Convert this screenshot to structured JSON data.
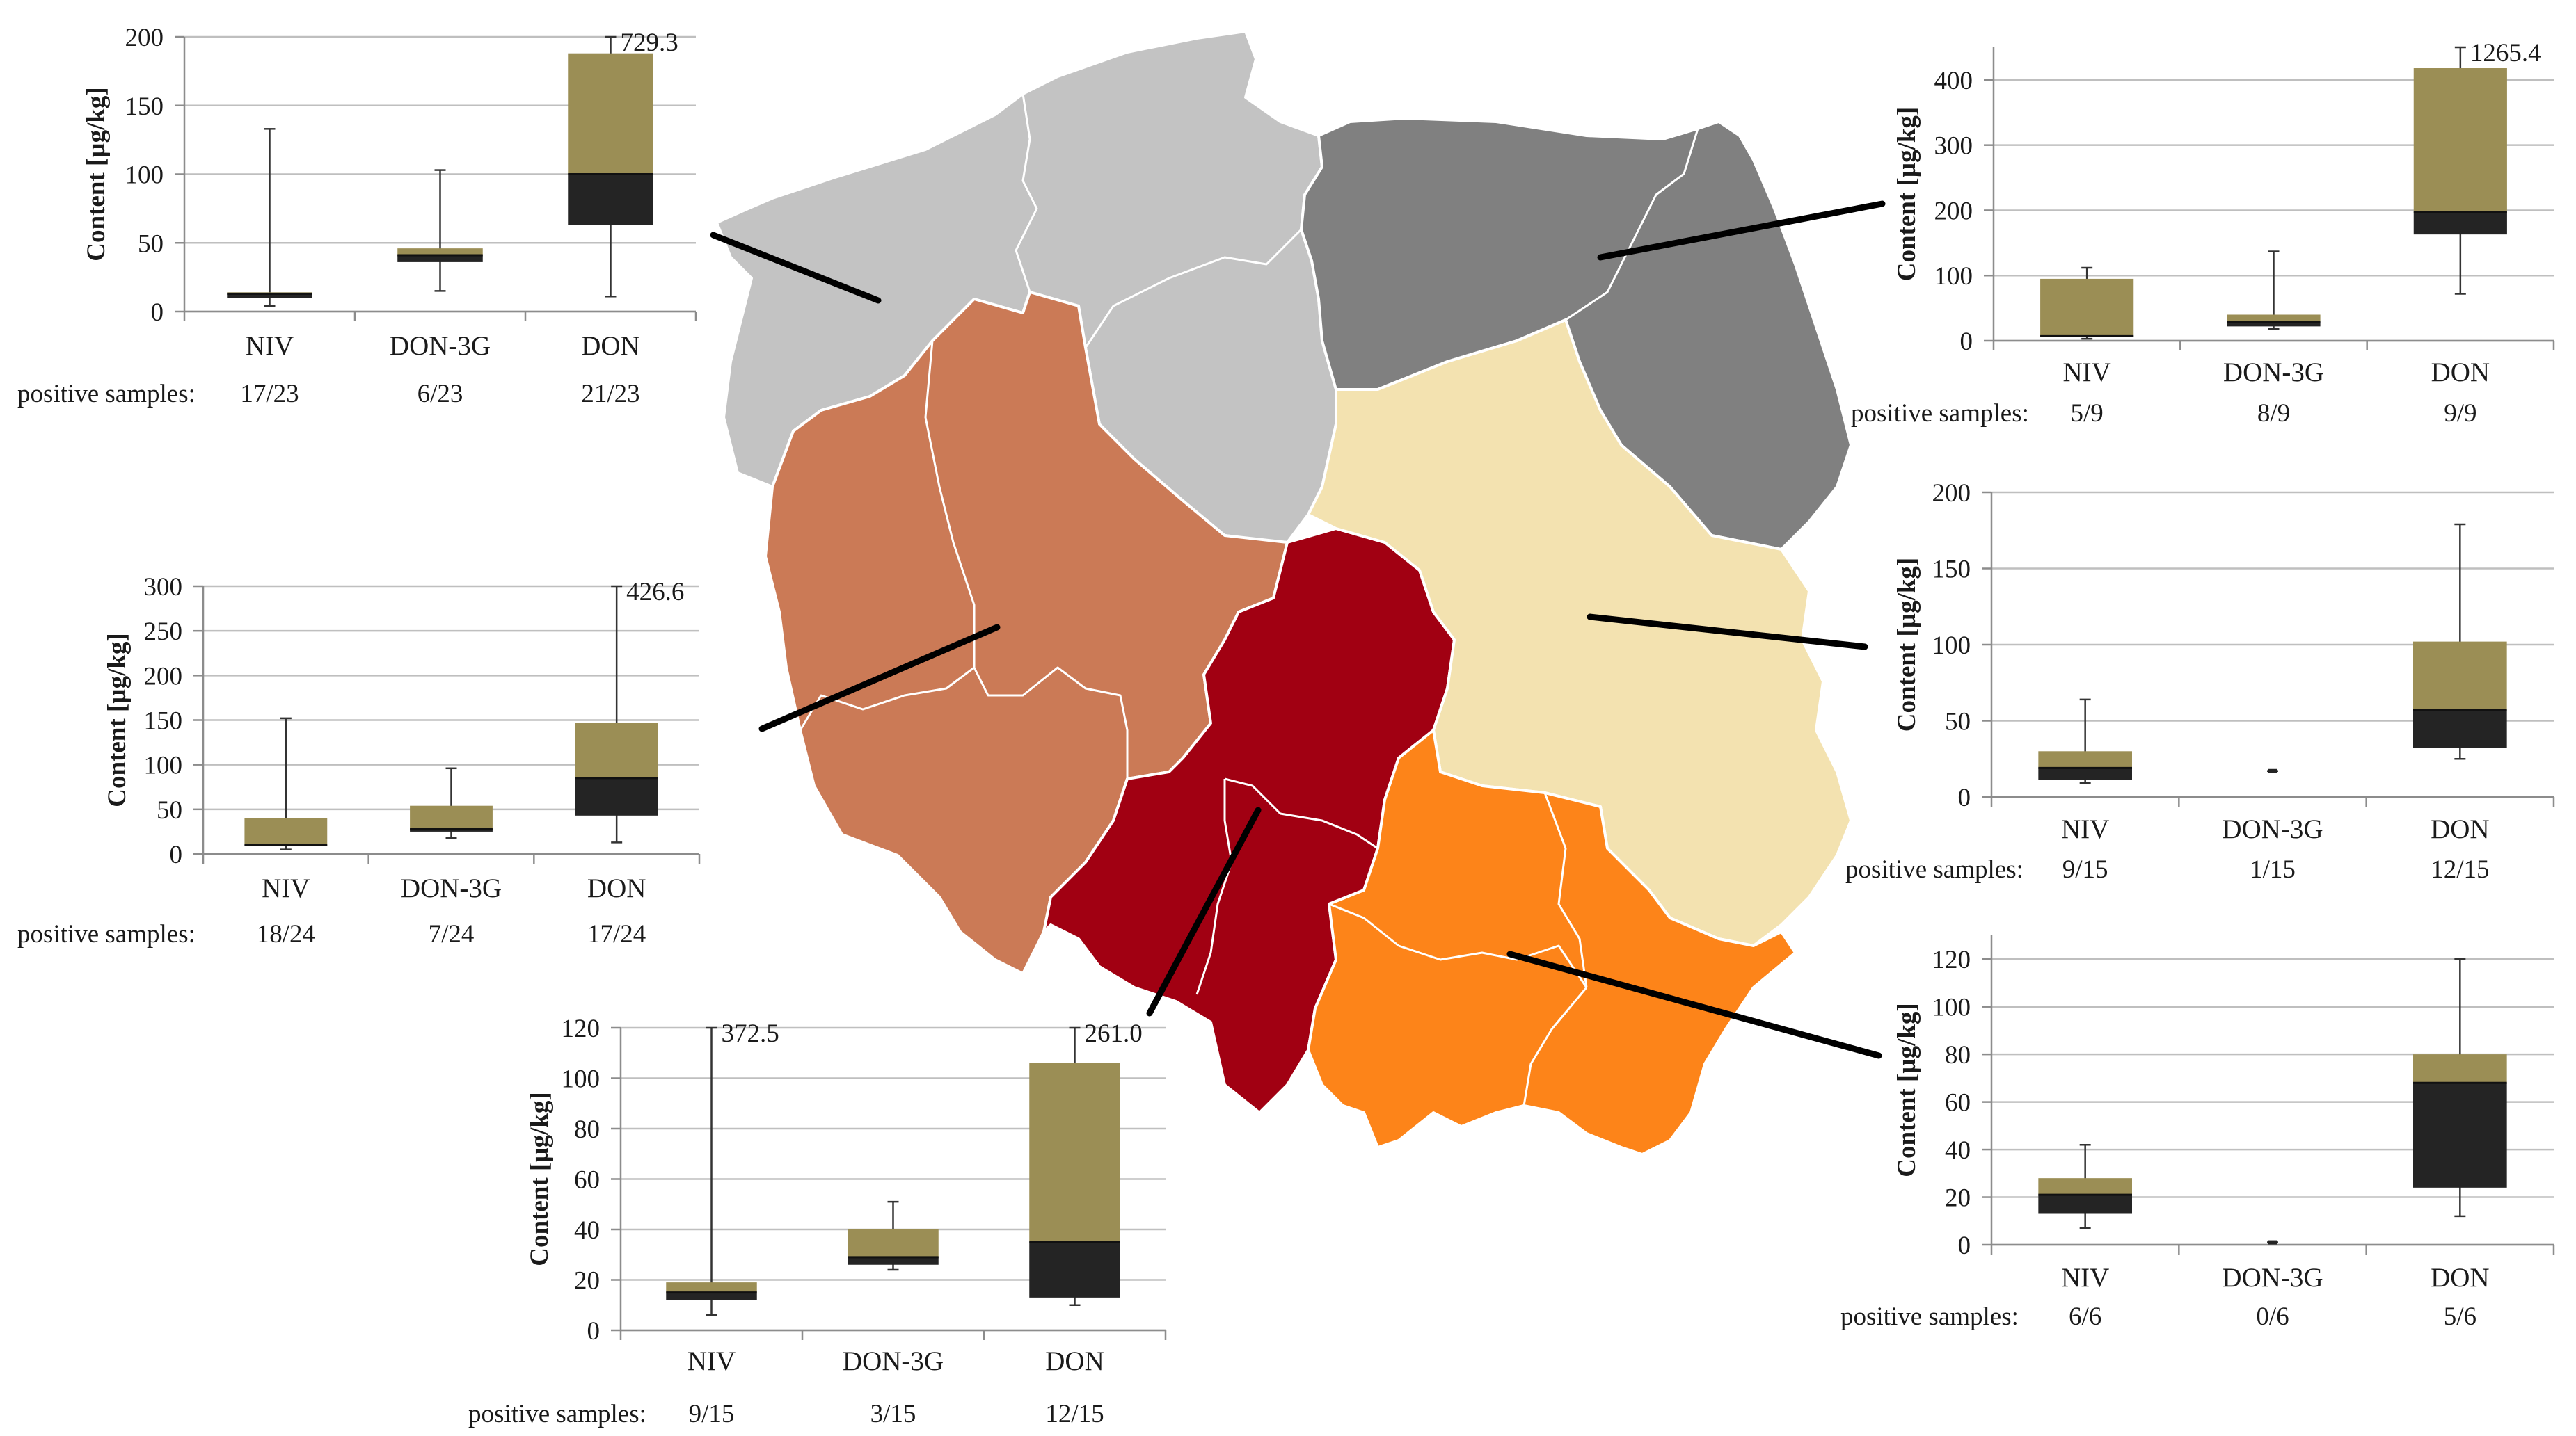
{
  "colors": {
    "upper_box": "#9B8E55",
    "lower_box": "#242424",
    "grid": "#BFBFBF",
    "axis": "#8C8C8C",
    "region_northwest": "#C3C3C3",
    "region_northeast": "#808080",
    "region_west": "#CB7A56",
    "region_central_south": "#A10012",
    "region_east": "#F3E2B0",
    "region_southeast": "#FD8419"
  },
  "chart_data": [
    {
      "id": "northwest",
      "type": "box",
      "ylabel": "Content [µg/kg]",
      "ylim": [
        0,
        200
      ],
      "yticks": [
        0,
        50,
        100,
        150,
        200
      ],
      "categories": [
        "NIV",
        "DON-3G",
        "DON"
      ],
      "boxes": [
        {
          "min": 4,
          "q1": 10,
          "median": 13,
          "q3": 14,
          "max": 133
        },
        {
          "min": 15,
          "q1": 36,
          "median": 41,
          "q3": 46,
          "max": 103
        },
        {
          "min": 11,
          "q1": 63,
          "median": 100,
          "q3": 188,
          "max": 200
        }
      ],
      "outlier_labels": [
        "",
        "",
        "729.3"
      ],
      "positive_samples_label": "positive samples:",
      "positive_samples": [
        "17/23",
        "6/23",
        "21/23"
      ]
    },
    {
      "id": "northeast",
      "type": "box",
      "ylabel": "Content [µg/kg]",
      "ylim": [
        0,
        450
      ],
      "yticks": [
        0,
        100,
        200,
        300,
        400
      ],
      "categories": [
        "NIV",
        "DON-3G",
        "DON"
      ],
      "boxes": [
        {
          "min": 3,
          "q1": 6,
          "median": 7,
          "q3": 95,
          "max": 112
        },
        {
          "min": 18,
          "q1": 22,
          "median": 29,
          "q3": 40,
          "max": 137
        },
        {
          "min": 72,
          "q1": 163,
          "median": 197,
          "q3": 418,
          "max": 450
        }
      ],
      "outlier_labels": [
        "",
        "",
        "1265.4"
      ],
      "positive_samples_label": "positive samples:",
      "positive_samples": [
        "5/9",
        "8/9",
        "9/9"
      ]
    },
    {
      "id": "west",
      "type": "box",
      "ylabel": "Content [µg/kg]",
      "ylim": [
        0,
        300
      ],
      "yticks": [
        0,
        50,
        100,
        150,
        200,
        250,
        300
      ],
      "categories": [
        "NIV",
        "DON-3G",
        "DON"
      ],
      "boxes": [
        {
          "min": 5,
          "q1": 9,
          "median": 10,
          "q3": 40,
          "max": 152
        },
        {
          "min": 18,
          "q1": 25,
          "median": 28,
          "q3": 54,
          "max": 96
        },
        {
          "min": 13,
          "q1": 43,
          "median": 85,
          "q3": 147,
          "max": 300
        }
      ],
      "outlier_labels": [
        "",
        "",
        "426.6"
      ],
      "positive_samples_label": "positive samples:",
      "positive_samples": [
        "18/24",
        "7/24",
        "17/24"
      ]
    },
    {
      "id": "east",
      "type": "box",
      "ylabel": "Content [µg/kg]",
      "ylim": [
        0,
        200
      ],
      "yticks": [
        0,
        50,
        100,
        150,
        200
      ],
      "categories": [
        "NIV",
        "DON-3G",
        "DON"
      ],
      "boxes": [
        {
          "min": 9,
          "q1": 11,
          "median": 19,
          "q3": 30,
          "max": 64
        },
        {
          "min": 17,
          "q1": 17,
          "median": 17,
          "q3": 17,
          "max": 17
        },
        {
          "min": 25,
          "q1": 32,
          "median": 57,
          "q3": 102,
          "max": 179
        }
      ],
      "outlier_labels": [
        "",
        "",
        ""
      ],
      "positive_samples_label": "positive samples:",
      "positive_samples": [
        "9/15",
        "1/15",
        "12/15"
      ]
    },
    {
      "id": "southeast",
      "type": "box",
      "ylabel": "Content [µg/kg]",
      "ylim": [
        0,
        130
      ],
      "yticks": [
        0,
        20,
        40,
        60,
        80,
        100,
        120
      ],
      "categories": [
        "NIV",
        "DON-3G",
        "DON"
      ],
      "boxes": [
        {
          "min": 7,
          "q1": 13,
          "median": 21,
          "q3": 28,
          "max": 42
        },
        {
          "min": 1,
          "q1": 1,
          "median": 1,
          "q3": 1,
          "max": 1
        },
        {
          "min": 12,
          "q1": 24,
          "median": 68,
          "q3": 80,
          "max": 120
        }
      ],
      "outlier_labels": [
        "",
        "",
        ""
      ],
      "positive_samples_label": "positive samples:",
      "positive_samples": [
        "6/6",
        "0/6",
        "5/6"
      ]
    },
    {
      "id": "south",
      "type": "box",
      "ylabel": "Content [µg/kg]",
      "ylim": [
        0,
        120
      ],
      "yticks": [
        0,
        20,
        40,
        60,
        80,
        100,
        120
      ],
      "categories": [
        "NIV",
        "DON-3G",
        "DON"
      ],
      "boxes": [
        {
          "min": 6,
          "q1": 12,
          "median": 15,
          "q3": 19,
          "max": 120
        },
        {
          "min": 24,
          "q1": 26,
          "median": 29,
          "q3": 40,
          "max": 51
        },
        {
          "min": 10,
          "q1": 13,
          "median": 35,
          "q3": 106,
          "max": 120
        }
      ],
      "outlier_labels": [
        "372.5",
        "",
        "261.0"
      ],
      "positive_samples_label": "positive samples:",
      "positive_samples": [
        "9/15",
        "3/15",
        "12/15"
      ]
    }
  ]
}
